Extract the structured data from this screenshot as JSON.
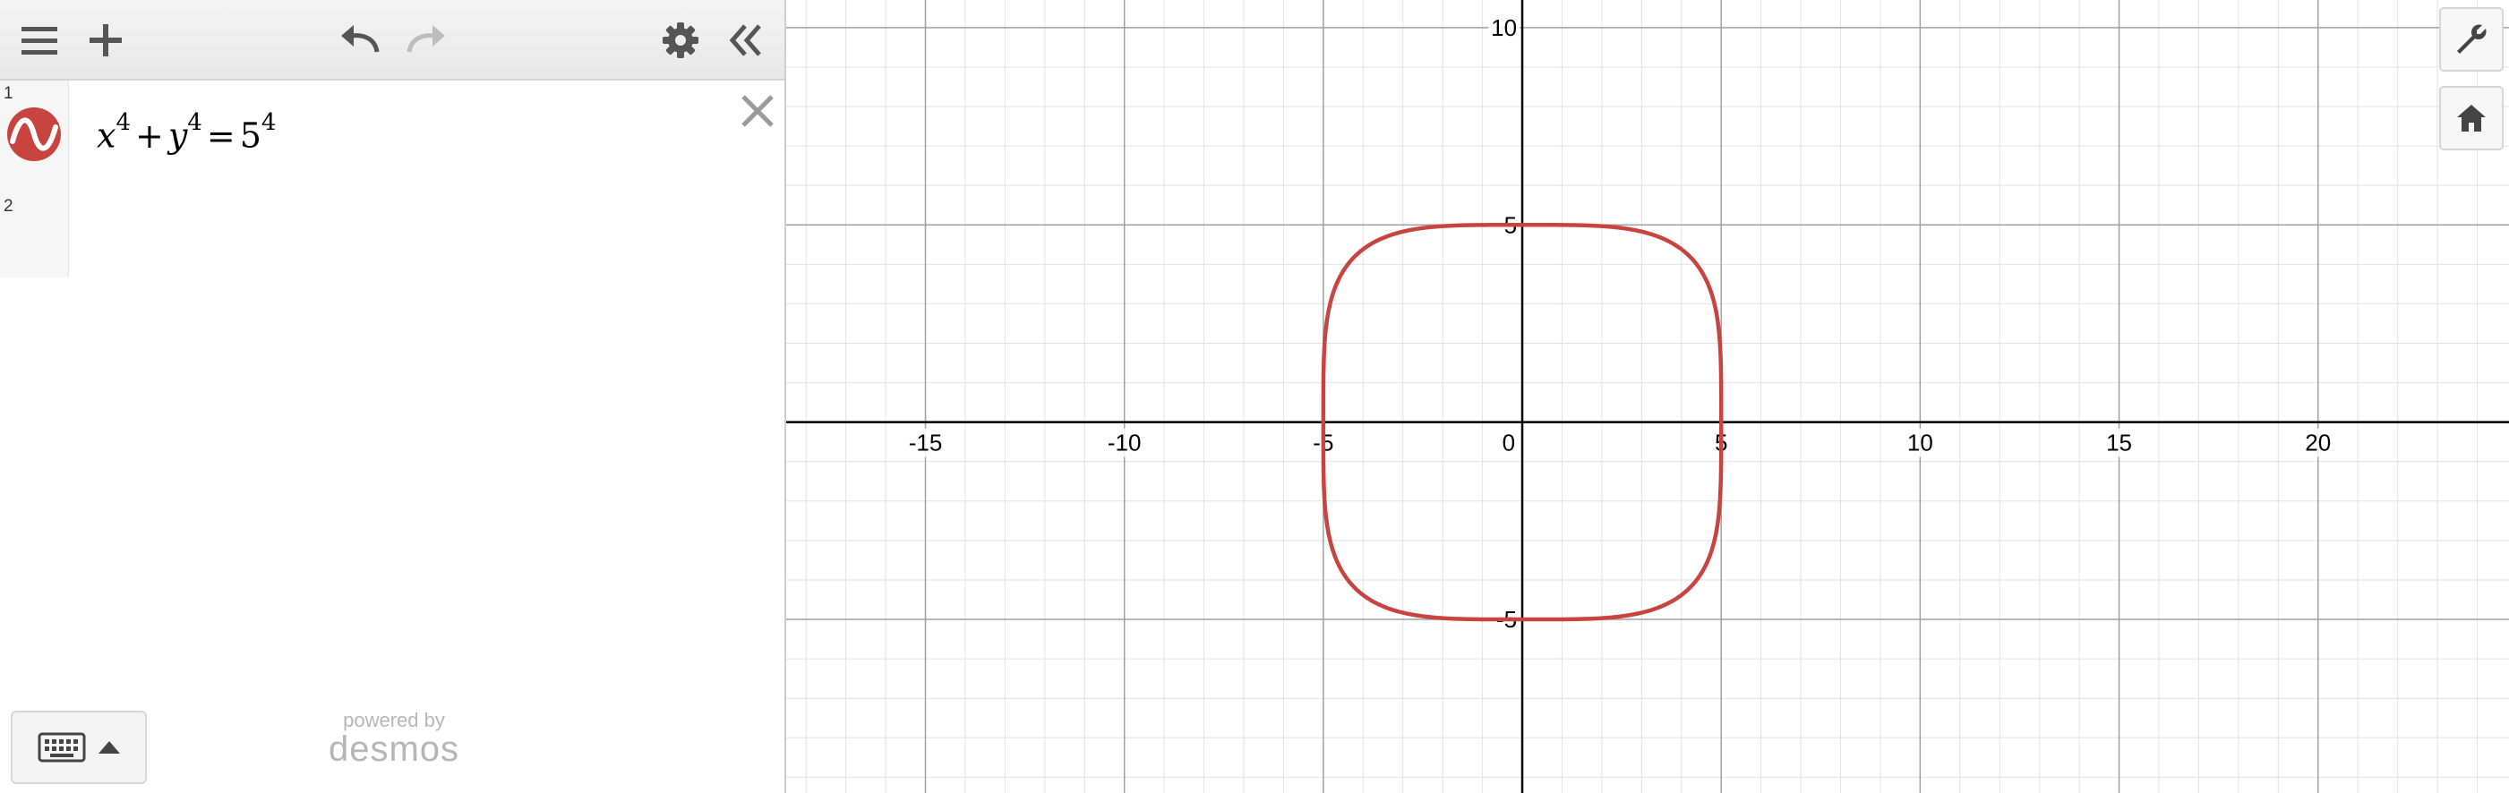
{
  "toolbar": {
    "icons": [
      "menu-icon",
      "add-icon",
      "undo-icon",
      "redo-icon",
      "gear-icon",
      "collapse-panel-icon"
    ]
  },
  "expressions": [
    {
      "number": "1",
      "color": "#c74440",
      "latex": "x^4+y^4=5^4",
      "display": {
        "a": "x",
        "a_exp": "4",
        "op1": "+",
        "b": "y",
        "b_exp": "4",
        "op2": "=",
        "c": "5",
        "c_exp": "4"
      }
    },
    {
      "number": "2"
    }
  ],
  "footer": {
    "powered_by": "powered by",
    "brand": "desmos",
    "keyboard_icon": "keyboard-icon"
  },
  "graph_controls": [
    "wrench-icon",
    "home-icon"
  ],
  "chart_data": {
    "type": "line",
    "title": "",
    "xlabel": "",
    "ylabel": "",
    "xlim": [
      -18.5,
      24.8
    ],
    "ylim": [
      -9.4,
      10.7
    ],
    "x_tick_labels": [
      "-15",
      "-10",
      "-5",
      "0",
      "5",
      "10",
      "15",
      "20"
    ],
    "y_tick_labels": [
      "10",
      "5",
      "-5"
    ],
    "grid": true,
    "series": [
      {
        "equation": "x^4+y^4=5^4",
        "color": "#c74440",
        "radius": 5,
        "exponent": 4
      }
    ]
  }
}
